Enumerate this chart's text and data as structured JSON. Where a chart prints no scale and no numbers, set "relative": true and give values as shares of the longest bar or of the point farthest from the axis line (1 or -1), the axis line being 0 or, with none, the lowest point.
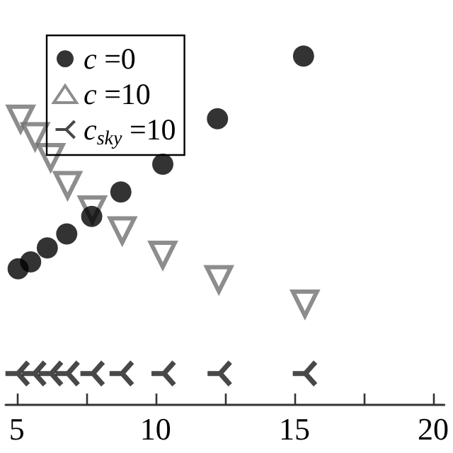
{
  "chart_data": {
    "type": "scatter",
    "relative": true,
    "legend": "top left",
    "grid": false,
    "xlim": [
      4.6,
      20.4
    ],
    "xticks": [
      5,
      {
        "value": 7.5,
        "label": null
      },
      10,
      {
        "value": 12.5,
        "label": null
      },
      15,
      {
        "value": 17.5,
        "label": null
      },
      20
    ],
    "series": [
      {
        "name": "c =0",
        "color": "#000000",
        "marker": "circle",
        "x": [
          5.05,
          5.5,
          6.1,
          6.8,
          7.7,
          8.75,
          10.26,
          12.23,
          15.33
        ],
        "values": [
          0.39,
          0.41,
          0.45,
          0.49,
          0.54,
          0.61,
          0.69,
          0.82,
          1
        ]
      },
      {
        "name": "c =10",
        "color": "#707070",
        "marker": "triangle",
        "x": [
          5.14,
          5.66,
          6.22,
          6.83,
          7.72,
          8.8,
          10.26,
          12.28,
          15.38
        ],
        "values": [
          0.82,
          0.77,
          0.71,
          0.63,
          0.56,
          0.5,
          0.43,
          0.36,
          0.29
        ]
      },
      {
        "name": "c$_{sky}$ =10",
        "color": "#1a1a1a",
        "marker": "cross",
        "x": [
          5.0,
          5.6,
          6.2,
          6.8,
          7.7,
          8.75,
          10.26,
          12.28,
          15.35
        ],
        "values": [
          0.09,
          0.09,
          0.09,
          0.09,
          0.09,
          0.09,
          0.09,
          0.09,
          0.09
        ]
      }
    ]
  }
}
